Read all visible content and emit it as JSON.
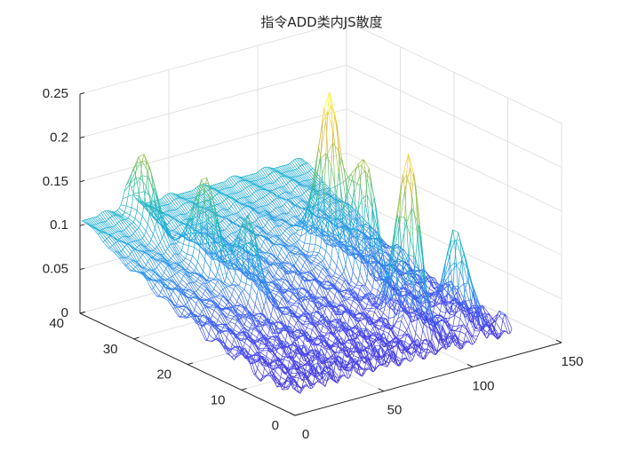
{
  "chart_data": {
    "type": "mesh3d",
    "title": "指令ADD类内JS散度",
    "xlabel": "",
    "ylabel": "",
    "zlabel": "",
    "xlim": [
      0,
      150
    ],
    "ylim": [
      0,
      40
    ],
    "zlim": [
      0,
      0.25
    ],
    "xticks": [
      "0",
      "50",
      "100",
      "150"
    ],
    "yticks": [
      "0",
      "10",
      "20",
      "30",
      "40"
    ],
    "zticks": [
      "0",
      "0.05",
      "0.1",
      "0.15",
      "0.2",
      "0.25"
    ],
    "grid": true,
    "colormap": "parula",
    "colormap_colors": [
      "#3e26a8",
      "#4743f1",
      "#2e8ef0",
      "#17b0d0",
      "#3ac09b",
      "#9cc24b",
      "#f0bc3c",
      "#f9fb14"
    ],
    "data_extent": {
      "x": [
        1,
        125
      ],
      "y": [
        1,
        40
      ]
    },
    "surface_description": {
      "baseline_at_y40": 0.105,
      "peaks": [
        {
          "x": 88,
          "y": 8,
          "z": 0.235
        },
        {
          "x": 92,
          "y": 24,
          "z": 0.225
        },
        {
          "x": 96,
          "y": 19,
          "z": 0.18
        },
        {
          "x": 110,
          "y": 6,
          "z": 0.145
        },
        {
          "x": 35,
          "y": 28,
          "z": 0.14
        },
        {
          "x": 40,
          "y": 22,
          "z": 0.125
        },
        {
          "x": 27,
          "y": 37,
          "z": 0.12
        }
      ]
    }
  }
}
